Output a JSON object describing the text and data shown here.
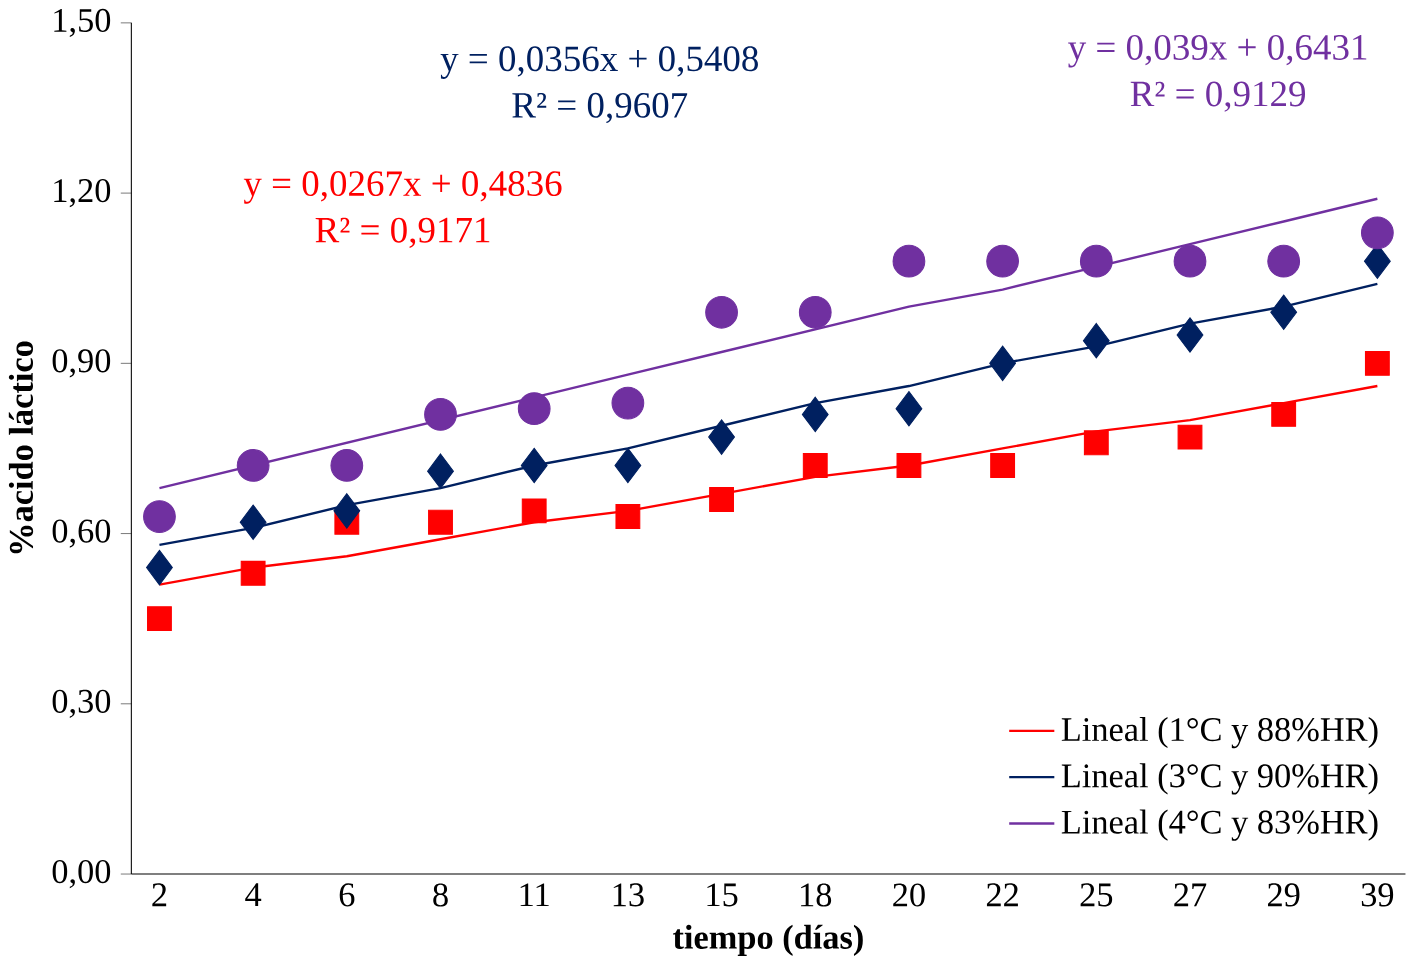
{
  "chart_data": {
    "type": "scatter",
    "xlabel": "tiempo (días)",
    "ylabel": "%acido láctico",
    "categories": [
      "2",
      "4",
      "6",
      "8",
      "11",
      "13",
      "15",
      "18",
      "20",
      "22",
      "25",
      "27",
      "29",
      "39"
    ],
    "ylim": [
      0,
      1.5
    ],
    "yticks": [
      {
        "value": 0,
        "label": "0,00"
      },
      {
        "value": 0.3,
        "label": "0,30"
      },
      {
        "value": 0.6,
        "label": "0,60"
      },
      {
        "value": 0.9,
        "label": "0,90"
      },
      {
        "value": 1.2,
        "label": "1,20"
      },
      {
        "value": 1.5,
        "label": "1,50"
      }
    ],
    "legend": "bottom right",
    "grid": false,
    "series": [
      {
        "marker": "square",
        "color": "#ff0000",
        "values": [
          0.45,
          0.53,
          0.62,
          0.62,
          0.64,
          0.63,
          0.66,
          0.72,
          0.72,
          0.72,
          0.76,
          0.77,
          0.81,
          0.9
        ]
      },
      {
        "marker": "diamond",
        "color": "#002060",
        "values": [
          0.54,
          0.62,
          0.64,
          0.71,
          0.72,
          0.72,
          0.77,
          0.81,
          0.82,
          0.9,
          0.94,
          0.95,
          0.99,
          1.08
        ]
      },
      {
        "marker": "circle",
        "color": "#7030a0",
        "values": [
          0.63,
          0.72,
          0.72,
          0.81,
          0.82,
          0.83,
          0.99,
          0.99,
          1.08,
          1.08,
          1.08,
          1.08,
          1.08,
          1.13
        ]
      },
      {
        "type": "line",
        "name": "Lineal (1°C y 88%HR)",
        "color": "#ff0000",
        "values": [
          0.51,
          0.54,
          0.56,
          0.59,
          0.62,
          0.64,
          0.67,
          0.7,
          0.72,
          0.75,
          0.78,
          0.8,
          0.83,
          0.86
        ]
      },
      {
        "type": "line",
        "name": "Lineal (3°C y 90%HR)",
        "color": "#002060",
        "values": [
          0.58,
          0.61,
          0.65,
          0.68,
          0.72,
          0.75,
          0.79,
          0.83,
          0.86,
          0.9,
          0.93,
          0.97,
          1.0,
          1.04
        ]
      },
      {
        "type": "line",
        "name": "Lineal (4°C y 83%HR)",
        "color": "#7030a0",
        "values": [
          0.68,
          0.72,
          0.76,
          0.8,
          0.84,
          0.88,
          0.92,
          0.96,
          1.0,
          1.03,
          1.07,
          1.11,
          1.15,
          1.19
        ]
      }
    ],
    "annotations": [
      "y = 0,0267x + 0,4836",
      "R² = 0,9171",
      "y = 0,0356x + 0,5408",
      "R² = 0,9607",
      "y = 0,039x + 0,6431",
      "R² = 0,9129"
    ]
  }
}
